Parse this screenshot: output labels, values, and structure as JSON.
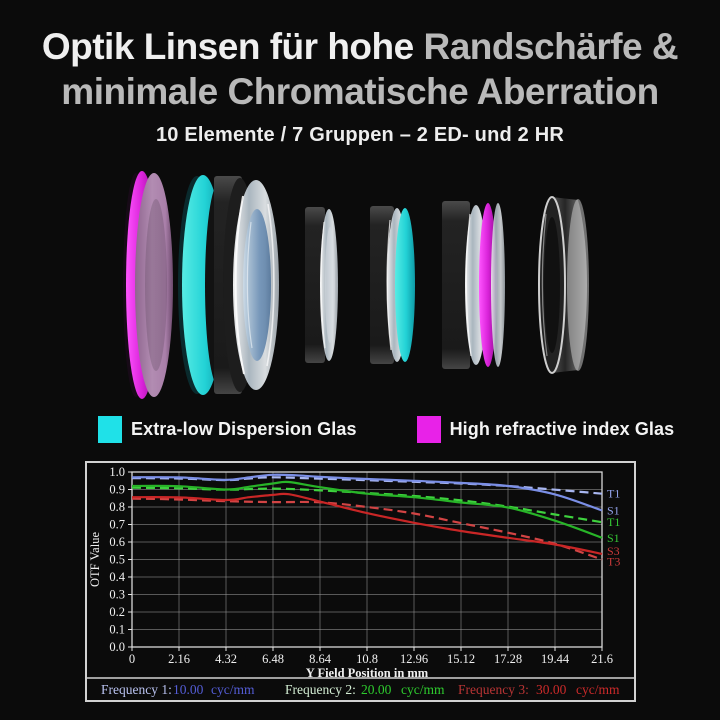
{
  "title": {
    "line1_white": "Optik Linsen für hohe ",
    "line1_gray": "Randschärfe &",
    "line2": "minimale Chromatische Aberration",
    "subtitle": "10 Elemente / 7 Gruppen – 2 ED- und 2 HR"
  },
  "colors": {
    "background": "#0b0b0b",
    "ed_glass": "#1fe1e8",
    "hr_glass": "#e822e8",
    "panel_border": "#d2d2d2",
    "title_white": "#efefef",
    "title_gray": "#b9b9b9"
  },
  "legend": {
    "items": [
      {
        "label": "Extra-low Dispersion Glas",
        "color": "#1fe1e8"
      },
      {
        "label": "High refractive index Glas",
        "color": "#e822e8"
      }
    ]
  },
  "lens_diagram": {
    "elements": [
      {
        "name": "element-1",
        "tint": "magenta",
        "meaning": "High refractive index Glas"
      },
      {
        "name": "element-2",
        "tint": "cyan",
        "meaning": "Extra-low Dispersion Glas"
      },
      {
        "name": "element-3",
        "tint": "clear",
        "meaning": "Standard Glas"
      },
      {
        "name": "element-4",
        "tint": "cyan",
        "meaning": "Extra-low Dispersion Glas"
      },
      {
        "name": "element-5",
        "tint": "magenta",
        "meaning": "High refractive index Glas"
      },
      {
        "name": "element-6",
        "tint": "clear",
        "meaning": "Standard Glas"
      }
    ]
  },
  "chart_data": {
    "type": "line",
    "title": "",
    "xlabel": "Y Field Position in mm",
    "ylabel": "OTF Value",
    "xlim": [
      0,
      21.6
    ],
    "ylim": [
      0.0,
      1.0
    ],
    "grid": true,
    "legend_position": "right",
    "x_ticks": [
      0,
      2.16,
      4.32,
      6.48,
      8.64,
      10.8,
      12.96,
      15.12,
      17.28,
      19.44,
      21.6
    ],
    "x_tick_labels": [
      "0",
      "2.16",
      "4.32",
      "6.48",
      "8.64",
      "10.8",
      "12.96",
      "15.12",
      "17.28",
      "19.44",
      "21.6"
    ],
    "y_tick_labels": [
      "1.0",
      "0.9",
      "0.8",
      "0.7",
      "0.6",
      "0.5",
      "0.4",
      "0.3",
      "0.2",
      "0.1",
      "0.0"
    ],
    "series": [
      {
        "name": "T3",
        "frequency": "30.00 cyc/mm",
        "dash": true,
        "color": "#d24444",
        "label_color": "#c93a3a",
        "label_y": 0.488,
        "points": [
          [
            0,
            0.848
          ],
          [
            2.16,
            0.843
          ],
          [
            4.32,
            0.833
          ],
          [
            6.48,
            0.828
          ],
          [
            8.64,
            0.827
          ],
          [
            10.8,
            0.8
          ],
          [
            12.96,
            0.763
          ],
          [
            15.12,
            0.708
          ],
          [
            17.28,
            0.653
          ],
          [
            19.44,
            0.59
          ],
          [
            21.6,
            0.5
          ]
        ]
      },
      {
        "name": "S3",
        "frequency": "30.00 cyc/mm",
        "dash": false,
        "color": "#c92626",
        "label_color": "#c93a3a",
        "label_y": 0.548,
        "points": [
          [
            0,
            0.856
          ],
          [
            2.16,
            0.855
          ],
          [
            4.32,
            0.84
          ],
          [
            5.4,
            0.856
          ],
          [
            6.48,
            0.869
          ],
          [
            7.2,
            0.873
          ],
          [
            8.64,
            0.831
          ],
          [
            10.8,
            0.765
          ],
          [
            12.96,
            0.71
          ],
          [
            15.12,
            0.663
          ],
          [
            17.28,
            0.624
          ],
          [
            19.44,
            0.586
          ],
          [
            21.6,
            0.532
          ]
        ]
      },
      {
        "name": "T1",
        "frequency": "20.00 cyc/mm",
        "dash": true,
        "color": "#3ed23e",
        "label_color": "#35c735",
        "label_y": 0.713,
        "points": [
          [
            0,
            0.91
          ],
          [
            2.16,
            0.907
          ],
          [
            4.32,
            0.899
          ],
          [
            6.48,
            0.905
          ],
          [
            8.64,
            0.895
          ],
          [
            10.8,
            0.88
          ],
          [
            12.96,
            0.863
          ],
          [
            15.12,
            0.838
          ],
          [
            17.28,
            0.802
          ],
          [
            19.44,
            0.757
          ],
          [
            21.6,
            0.713
          ]
        ]
      },
      {
        "name": "S1",
        "frequency": "20.00 cyc/mm",
        "dash": false,
        "color": "#28b428",
        "label_color": "#35c735",
        "label_y": 0.624,
        "points": [
          [
            0,
            0.92
          ],
          [
            2.16,
            0.919
          ],
          [
            4.32,
            0.9
          ],
          [
            5.4,
            0.916
          ],
          [
            6.48,
            0.934
          ],
          [
            7.2,
            0.943
          ],
          [
            8.64,
            0.913
          ],
          [
            10.8,
            0.876
          ],
          [
            12.96,
            0.856
          ],
          [
            15.12,
            0.826
          ],
          [
            17.28,
            0.797
          ],
          [
            19.44,
            0.722
          ],
          [
            21.6,
            0.624
          ]
        ]
      },
      {
        "name": "T1",
        "frequency": "10.00 cyc/mm",
        "dash": true,
        "color": "#a8b6f0",
        "label_color": "#93a4ec",
        "label_y": 0.878,
        "points": [
          [
            0,
            0.965
          ],
          [
            2.16,
            0.963
          ],
          [
            4.32,
            0.954
          ],
          [
            5.4,
            0.963
          ],
          [
            6.48,
            0.97
          ],
          [
            8.64,
            0.962
          ],
          [
            10.8,
            0.953
          ],
          [
            12.96,
            0.944
          ],
          [
            15.12,
            0.934
          ],
          [
            17.28,
            0.92
          ],
          [
            19.44,
            0.899
          ],
          [
            21.6,
            0.876
          ]
        ]
      },
      {
        "name": "S1",
        "frequency": "10.00 cyc/mm",
        "dash": false,
        "color": "#7b8fe6",
        "label_color": "#93a4ec",
        "label_y": 0.78,
        "points": [
          [
            0,
            0.97
          ],
          [
            2.16,
            0.969
          ],
          [
            4.32,
            0.955
          ],
          [
            5.4,
            0.97
          ],
          [
            6.48,
            0.984
          ],
          [
            7.56,
            0.981
          ],
          [
            8.64,
            0.972
          ],
          [
            10.8,
            0.96
          ],
          [
            12.96,
            0.95
          ],
          [
            15.12,
            0.938
          ],
          [
            17.28,
            0.92
          ],
          [
            19.44,
            0.872
          ],
          [
            21.6,
            0.78
          ]
        ]
      }
    ],
    "footer": [
      {
        "label": "Frequency 1:",
        "value": "10.00",
        "unit": "cyc/mm",
        "label_color": "#b9c2f0",
        "value_color": "#545dd6"
      },
      {
        "label": "Frequency 2:",
        "value": "20.00",
        "unit": "cyc/mm",
        "label_color": "#d4eed4",
        "value_color": "#2ecc2e"
      },
      {
        "label": "Frequency 3:",
        "value": "30.00",
        "unit": "cyc/mm",
        "label_color": "#b83434",
        "value_color": "#cc2a2a"
      }
    ]
  }
}
